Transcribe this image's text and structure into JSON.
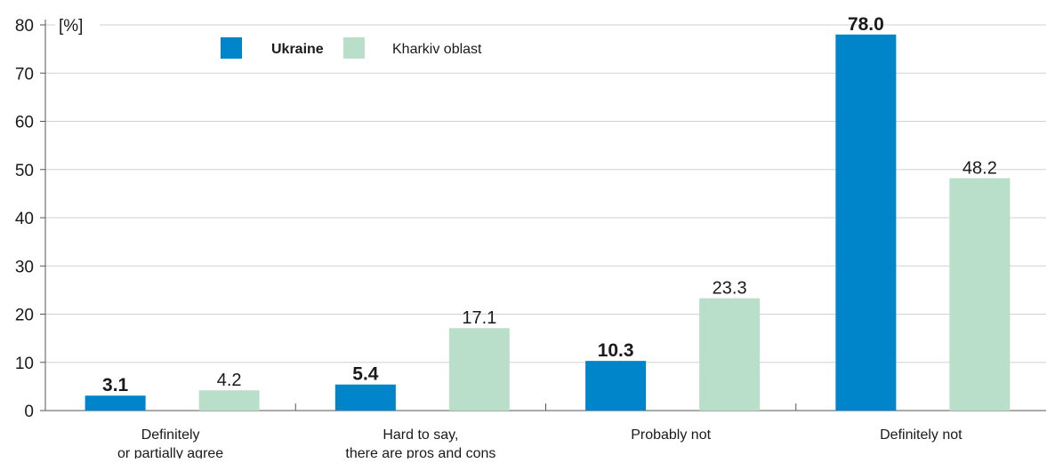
{
  "chart_data": {
    "type": "bar",
    "title": "",
    "xlabel": "",
    "ylabel": "[%]",
    "ylim": [
      0,
      80
    ],
    "yticks": [
      0,
      10,
      20,
      30,
      40,
      50,
      60,
      70,
      80
    ],
    "grid": true,
    "legend_position": "top-left",
    "categories": [
      [
        "Definitely",
        "or partially agree"
      ],
      [
        "Hard to say,",
        "there are pros and cons"
      ],
      [
        "Probably not"
      ],
      [
        "Definitely not"
      ]
    ],
    "series": [
      {
        "name": "Ukraine",
        "values": [
          3.1,
          5.4,
          10.3,
          78.0
        ],
        "labels": [
          "3.1",
          "5.4",
          "10.3",
          "78.0"
        ],
        "color": "#0085ca",
        "bold": true
      },
      {
        "name": "Kharkiv oblast",
        "values": [
          4.2,
          17.1,
          23.3,
          48.2
        ],
        "labels": [
          "4.2",
          "17.1",
          "23.3",
          "48.2"
        ],
        "color": "#b9dfca",
        "bold": false
      }
    ],
    "colors": {
      "grid": "#d0d0d0",
      "axis": "#555555",
      "text": "#1a1a1a"
    }
  }
}
